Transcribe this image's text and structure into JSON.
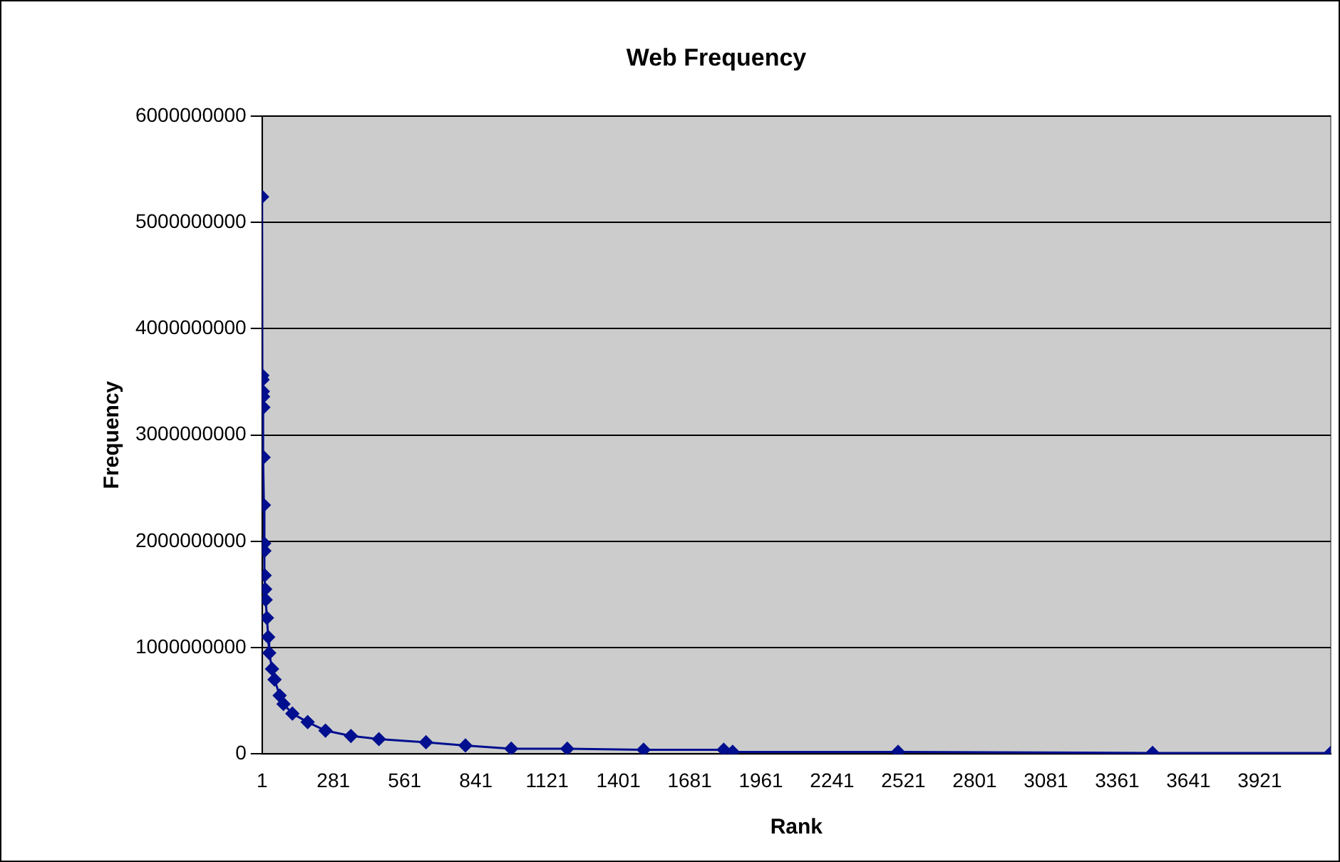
{
  "chart_data": {
    "type": "line",
    "title": "Web Frequency",
    "xlabel": "Rank",
    "ylabel": "Frequency",
    "x": [
      1,
      2,
      3,
      4,
      5,
      6,
      7,
      8,
      9,
      10,
      11,
      13,
      15,
      20,
      25,
      29,
      40,
      50,
      70,
      85,
      120,
      180,
      250,
      350,
      460,
      645,
      800,
      980,
      1200,
      1500,
      1815,
      1850,
      2500,
      3500,
      4200
    ],
    "series": [
      {
        "color": "#000f8f",
        "values": [
          5240000000,
          3560000000,
          3520000000,
          3410000000,
          3360000000,
          3260000000,
          2790000000,
          2340000000,
          1980000000,
          1910000000,
          1680000000,
          1550000000,
          1450000000,
          1280000000,
          1100000000,
          950000000,
          800000000,
          700000000,
          550000000,
          470000000,
          380000000,
          300000000,
          220000000,
          170000000,
          140000000,
          110000000,
          80000000,
          50000000,
          50000000,
          40000000,
          40000000,
          20000000,
          20000000,
          10000000,
          10000000
        ]
      }
    ],
    "xlim": [
      1,
      4200
    ],
    "xticks": [
      1,
      281,
      561,
      841,
      1121,
      1401,
      1681,
      1961,
      2241,
      2521,
      2801,
      3081,
      3361,
      3641,
      3921
    ],
    "ylim": [
      0,
      6000000000
    ],
    "yticks": [
      0,
      1000000000,
      2000000000,
      3000000000,
      4000000000,
      5000000000,
      6000000000
    ],
    "grid": "y",
    "legend": false,
    "marker": "diamond",
    "line_style": "solid"
  }
}
